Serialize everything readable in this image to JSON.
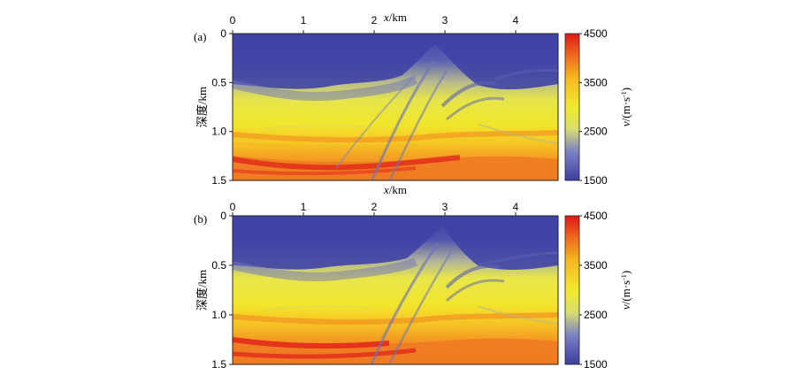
{
  "chart_data": [
    {
      "type": "heatmap",
      "panel_label": "(a)",
      "xlabel_italic": "x",
      "xlabel_unit": "/km",
      "ylabel": "深度/km",
      "x_ticks": [
        "0",
        "1",
        "2",
        "3",
        "4"
      ],
      "x_tick_values": [
        0,
        1,
        2,
        3,
        4
      ],
      "y_ticks": [
        "0",
        "0.5",
        "1.0",
        "1.5"
      ],
      "y_tick_values": [
        0,
        0.5,
        1.0,
        1.5
      ],
      "xlim": [
        0,
        4.6
      ],
      "ylim": [
        0,
        1.5
      ],
      "colorbar": {
        "label_italic": "v",
        "label_unit": "/(m·s",
        "label_sup": "-1",
        "label_close": ")",
        "ticks": [
          "4500",
          "3500",
          "2500",
          "1500"
        ],
        "tick_values": [
          4500,
          3500,
          2500,
          1500
        ],
        "range": [
          1500,
          4500
        ],
        "colormap": [
          "#3b3fa0",
          "#8a8fc8",
          "#e8e84a",
          "#f5d020",
          "#f08a20",
          "#e02020"
        ]
      }
    },
    {
      "type": "heatmap",
      "panel_label": "(b)",
      "xlabel_italic": "x",
      "xlabel_unit": "/km",
      "ylabel": "深度/km",
      "x_ticks": [
        "0",
        "1",
        "2",
        "3",
        "4"
      ],
      "x_tick_values": [
        0,
        1,
        2,
        3,
        4
      ],
      "y_ticks": [
        "0",
        "0.5",
        "1.0",
        "1.5"
      ],
      "y_tick_values": [
        0,
        0.5,
        1.0,
        1.5
      ],
      "xlim": [
        0,
        4.6
      ],
      "ylim": [
        0,
        1.5
      ],
      "colorbar": {
        "label_italic": "v",
        "label_unit": "/(m·s",
        "label_sup": "-1",
        "label_close": ")",
        "ticks": [
          "4500",
          "3500",
          "2500",
          "1500"
        ],
        "tick_values": [
          4500,
          3500,
          2500,
          1500
        ],
        "range": [
          1500,
          4500
        ],
        "colormap": [
          "#3b3fa0",
          "#8a8fc8",
          "#e8e84a",
          "#f5d020",
          "#f08a20",
          "#e02020"
        ]
      }
    }
  ]
}
